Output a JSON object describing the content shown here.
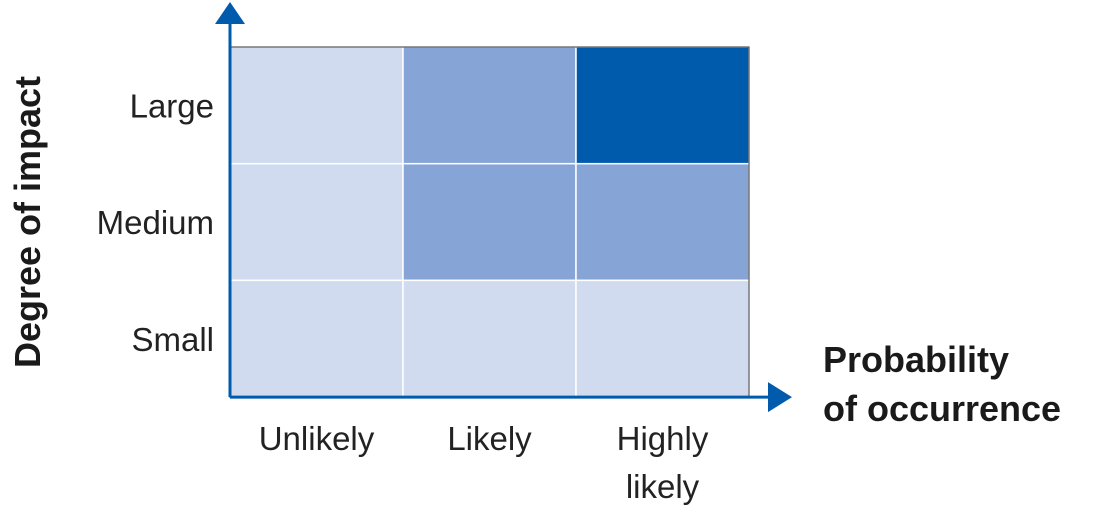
{
  "chart_data": {
    "type": "heatmap",
    "title": "",
    "xlabel_lines": [
      "Probability",
      "of occurrence"
    ],
    "ylabel": "Degree of impact",
    "x_categories": [
      {
        "lines": [
          "Unlikely"
        ]
      },
      {
        "lines": [
          "Likely"
        ]
      },
      {
        "lines": [
          "Highly",
          "likely"
        ]
      }
    ],
    "y_categories": [
      "Large",
      "Medium",
      "Small"
    ],
    "values": [
      [
        1,
        2,
        3
      ],
      [
        1,
        2,
        2
      ],
      [
        1,
        1,
        1
      ]
    ],
    "color_scale": {
      "1": "#d0dbf0",
      "2": "#86a5d6",
      "3": "#005bac"
    },
    "axis_color": "#005bac",
    "legend": "none",
    "grid": true
  }
}
